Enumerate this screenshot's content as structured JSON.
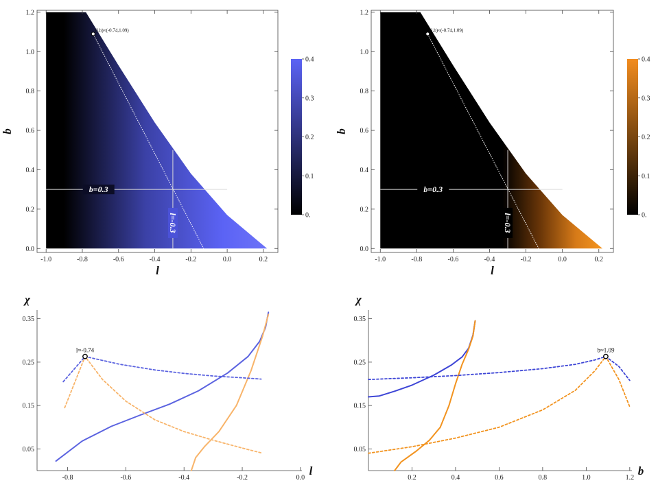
{
  "chart_data": [
    {
      "type": "heatmap",
      "xlabel": "l",
      "ylabel": "b",
      "xlim": [
        -1.05,
        0.28
      ],
      "ylim": [
        -0.02,
        1.21
      ],
      "xticks": [
        "-1.0",
        "-0.8",
        "-0.6",
        "-0.4",
        "-0.2",
        "0.0",
        "0.2"
      ],
      "yticks": [
        "0.0",
        "0.2",
        "0.4",
        "0.6",
        "0.8",
        "1.0",
        "1.2"
      ],
      "colorbar": {
        "ticks": [
          "0.",
          "0.1",
          "0.2",
          "0.3",
          "0.4"
        ],
        "range": [
          0,
          0.4
        ],
        "colors": [
          "#000000",
          "#5b63f5"
        ]
      },
      "colormap_color": "#5b63f5",
      "boundary": [
        [
          -0.78,
          1.2
        ],
        [
          -0.6,
          0.93
        ],
        [
          -0.4,
          0.64
        ],
        [
          -0.2,
          0.38
        ],
        [
          0.0,
          0.17
        ],
        [
          0.22,
          0.0
        ]
      ],
      "point": {
        "l": -0.74,
        "b": 1.09,
        "label": "(l,b)≈(-0.74,1.09)"
      },
      "hline": {
        "b": 0.3,
        "label": "b=0.3"
      },
      "vline": {
        "l": -0.3,
        "label": "l=-0.3"
      },
      "dotted_line": [
        [
          -0.74,
          1.09
        ],
        [
          -0.13,
          0.0
        ]
      ]
    },
    {
      "type": "heatmap",
      "xlabel": "l",
      "ylabel": "b",
      "xlim": [
        -1.05,
        0.28
      ],
      "ylim": [
        -0.02,
        1.21
      ],
      "xticks": [
        "-1.0",
        "-0.8",
        "-0.6",
        "-0.4",
        "-0.2",
        "0.0",
        "0.2"
      ],
      "yticks": [
        "0.0",
        "0.2",
        "0.4",
        "0.6",
        "0.8",
        "1.0",
        "1.2"
      ],
      "colorbar": {
        "ticks": [
          "0.",
          "0.1",
          "0.2",
          "0.3",
          "0.4"
        ],
        "range": [
          0,
          0.4
        ],
        "colors": [
          "#000000",
          "#f28c1e"
        ]
      },
      "colormap_color": "#f28c1e",
      "boundary": [
        [
          -0.78,
          1.2
        ],
        [
          -0.6,
          0.93
        ],
        [
          -0.4,
          0.64
        ],
        [
          -0.2,
          0.38
        ],
        [
          0.0,
          0.17
        ],
        [
          0.22,
          0.0
        ]
      ],
      "point": {
        "l": -0.74,
        "b": 1.09,
        "label": "(l,b)≈(-0.74,1.09)"
      },
      "hline": {
        "b": 0.3,
        "label": "b=0.3"
      },
      "vline": {
        "l": -0.3,
        "label": "l=-0.3"
      },
      "dotted_line": [
        [
          -0.74,
          1.09
        ],
        [
          -0.13,
          0.0
        ]
      ]
    },
    {
      "type": "line",
      "xlabel": "l",
      "ylabel": "χ",
      "xlim": [
        -0.905,
        0.005
      ],
      "ylim": [
        0,
        0.37
      ],
      "xticks": [
        "-0.8",
        "-0.6",
        "-0.4",
        "-0.2",
        "0.0"
      ],
      "yticks": [
        "0.05",
        "0.15",
        "0.25",
        "0.35"
      ],
      "point": {
        "x": -0.74,
        "y": 0.263,
        "label": "l≈-0.74"
      },
      "series": [
        {
          "color": "#5b63e0",
          "dash": false,
          "points": [
            [
              -0.84,
              0.022
            ],
            [
              -0.75,
              0.068
            ],
            [
              -0.65,
              0.102
            ],
            [
              -0.55,
              0.128
            ],
            [
              -0.45,
              0.153
            ],
            [
              -0.35,
              0.184
            ],
            [
              -0.25,
              0.225
            ],
            [
              -0.18,
              0.263
            ],
            [
              -0.14,
              0.298
            ],
            [
              -0.12,
              0.33
            ],
            [
              -0.11,
              0.365
            ]
          ]
        },
        {
          "color": "#f8b46a",
          "dash": false,
          "points": [
            [
              -0.375,
              0.0
            ],
            [
              -0.36,
              0.03
            ],
            [
              -0.33,
              0.055
            ],
            [
              -0.28,
              0.09
            ],
            [
              -0.22,
              0.15
            ],
            [
              -0.17,
              0.23
            ],
            [
              -0.13,
              0.31
            ],
            [
              -0.11,
              0.36
            ]
          ]
        },
        {
          "color": "#5b63e0",
          "dash": true,
          "points": [
            [
              -0.815,
              0.205
            ],
            [
              -0.74,
              0.263
            ],
            [
              -0.62,
              0.245
            ],
            [
              -0.5,
              0.232
            ],
            [
              -0.4,
              0.224
            ],
            [
              -0.3,
              0.218
            ],
            [
              -0.2,
              0.214
            ],
            [
              -0.135,
              0.211
            ]
          ]
        },
        {
          "color": "#f8b46a",
          "dash": true,
          "points": [
            [
              -0.81,
              0.145
            ],
            [
              -0.74,
              0.263
            ],
            [
              -0.68,
              0.21
            ],
            [
              -0.6,
              0.16
            ],
            [
              -0.5,
              0.117
            ],
            [
              -0.4,
              0.09
            ],
            [
              -0.3,
              0.07
            ],
            [
              -0.2,
              0.052
            ],
            [
              -0.13,
              0.04
            ]
          ]
        }
      ]
    },
    {
      "type": "line",
      "xlabel": "b",
      "ylabel": "χ",
      "xlim": [
        0,
        1.21
      ],
      "ylim": [
        0,
        0.37
      ],
      "xticks": [
        "0.2",
        "0.4",
        "0.6",
        "0.8",
        "1.0",
        "1.2"
      ],
      "yticks": [
        "0.05",
        "0.15",
        "0.25",
        "0.35"
      ],
      "point": {
        "x": 1.09,
        "y": 0.263,
        "label": "b≈1.09"
      },
      "series": [
        {
          "color": "#3d45d6",
          "dash": false,
          "points": [
            [
              0.0,
              0.17
            ],
            [
              0.05,
              0.172
            ],
            [
              0.12,
              0.183
            ],
            [
              0.2,
              0.197
            ],
            [
              0.3,
              0.22
            ],
            [
              0.38,
              0.243
            ],
            [
              0.43,
              0.262
            ],
            [
              0.46,
              0.282
            ],
            [
              0.48,
              0.312
            ],
            [
              0.49,
              0.345
            ]
          ]
        },
        {
          "color": "#f2931f",
          "dash": false,
          "points": [
            [
              0.12,
              0.0
            ],
            [
              0.15,
              0.02
            ],
            [
              0.22,
              0.045
            ],
            [
              0.28,
              0.07
            ],
            [
              0.33,
              0.1
            ],
            [
              0.37,
              0.15
            ],
            [
              0.4,
              0.2
            ],
            [
              0.43,
              0.245
            ],
            [
              0.46,
              0.28
            ],
            [
              0.48,
              0.31
            ],
            [
              0.49,
              0.345
            ]
          ]
        },
        {
          "color": "#3d45d6",
          "dash": true,
          "points": [
            [
              0.0,
              0.21
            ],
            [
              0.2,
              0.214
            ],
            [
              0.4,
              0.219
            ],
            [
              0.6,
              0.226
            ],
            [
              0.8,
              0.235
            ],
            [
              0.95,
              0.245
            ],
            [
              1.04,
              0.255
            ],
            [
              1.09,
              0.263
            ],
            [
              1.15,
              0.24
            ],
            [
              1.2,
              0.208
            ]
          ]
        },
        {
          "color": "#f2931f",
          "dash": true,
          "points": [
            [
              0.0,
              0.04
            ],
            [
              0.2,
              0.055
            ],
            [
              0.4,
              0.075
            ],
            [
              0.6,
              0.1
            ],
            [
              0.8,
              0.14
            ],
            [
              0.95,
              0.185
            ],
            [
              1.04,
              0.23
            ],
            [
              1.09,
              0.263
            ],
            [
              1.15,
              0.21
            ],
            [
              1.2,
              0.147
            ]
          ]
        }
      ]
    }
  ]
}
